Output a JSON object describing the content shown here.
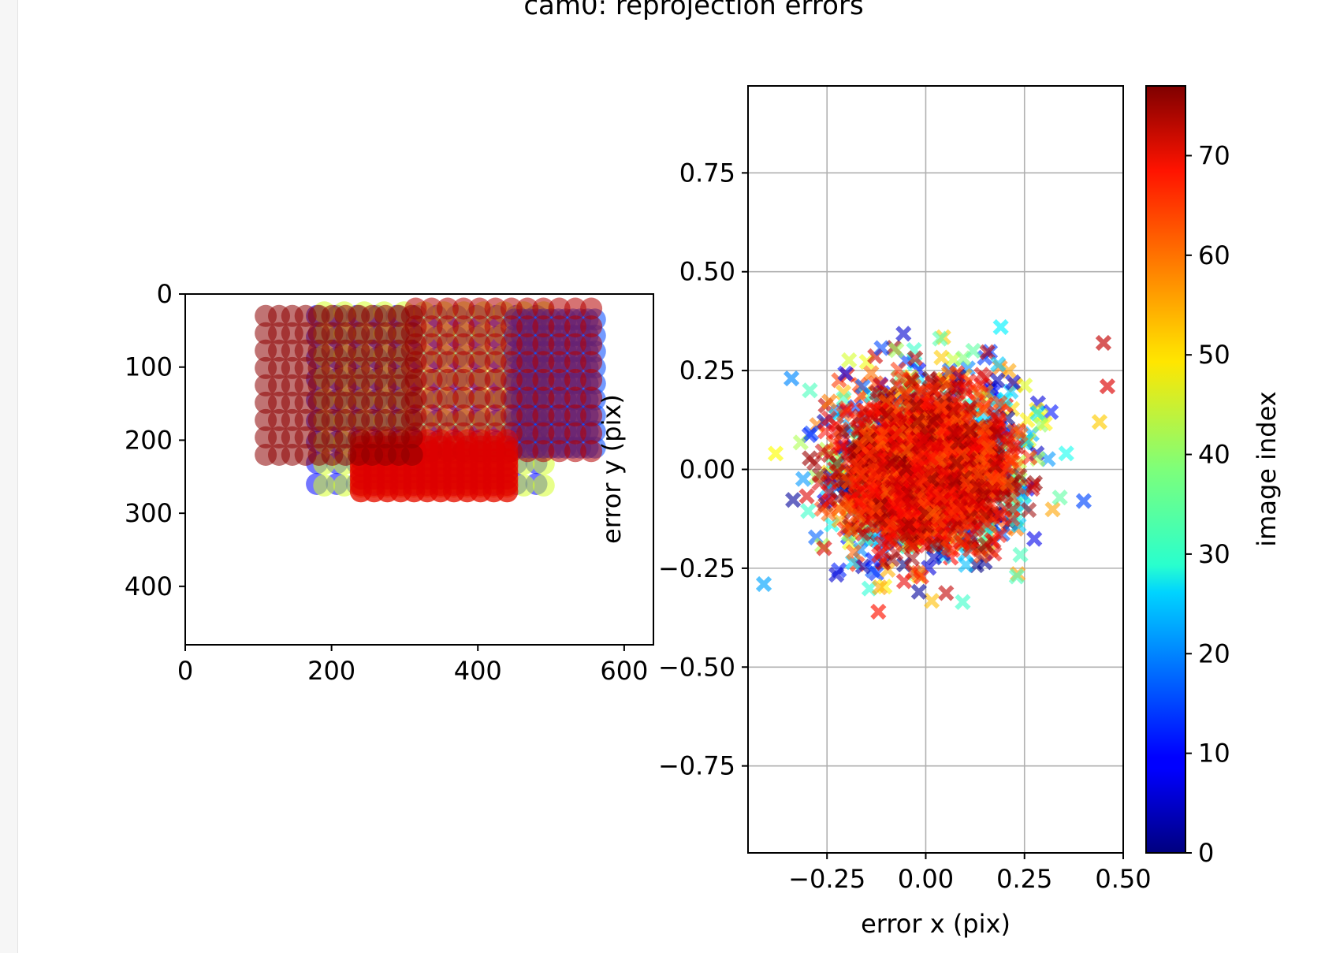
{
  "figure": {
    "title": "cam0: reprojection errors"
  },
  "chart_data": [
    {
      "type": "scatter",
      "name": "image-points",
      "xlim": [
        0,
        640
      ],
      "ylim": [
        480,
        0
      ],
      "xticks": [
        0,
        200,
        400,
        600
      ],
      "yticks": [
        0,
        100,
        200,
        300,
        400
      ],
      "xlabel": "",
      "ylabel": "",
      "marker": "circle",
      "grid": false,
      "color_by": "image index",
      "groups": [
        {
          "image_index": 10,
          "x_range": [
            180,
            480
          ],
          "y_range": [
            30,
            260
          ]
        },
        {
          "image_index": 45,
          "x_range": [
            190,
            490
          ],
          "y_range": [
            25,
            262
          ]
        },
        {
          "image_index": 15,
          "x_range": [
            450,
            560
          ],
          "y_range": [
            35,
            210
          ]
        },
        {
          "image_index": 63,
          "x_range": [
            240,
            440
          ],
          "y_range": [
            220,
            270
          ]
        },
        {
          "image_index": 73,
          "x_range": [
            315,
            555
          ],
          "y_range": [
            20,
            215
          ]
        },
        {
          "image_index": 70,
          "x_range": [
            240,
            440
          ],
          "y_range": [
            200,
            270
          ]
        },
        {
          "image_index": 76,
          "x_range": [
            110,
            310
          ],
          "y_range": [
            30,
            220
          ]
        }
      ]
    },
    {
      "type": "scatter",
      "name": "reprojection-errors",
      "xlim": [
        -0.45,
        0.5
      ],
      "ylim": [
        -0.97,
        0.97
      ],
      "xticks": [
        -0.25,
        0.0,
        0.25,
        0.5
      ],
      "xtick_labels": [
        "−0.25",
        "0.00",
        "0.25",
        "0.50"
      ],
      "yticks": [
        -0.75,
        -0.5,
        -0.25,
        0.0,
        0.25,
        0.5,
        0.75
      ],
      "ytick_labels": [
        "−0.75",
        "−0.50",
        "−0.25",
        "0.00",
        "0.25",
        "0.50",
        "0.75"
      ],
      "xlabel": "error x (pix)",
      "ylabel": "error y (pix)",
      "marker": "x",
      "grid": true,
      "color_by": "image index",
      "distribution": {
        "center": [
          0.0,
          0.0
        ],
        "spread_x": 0.12,
        "spread_y": 0.11,
        "max_radius": 0.36
      },
      "outliers": [
        {
          "x": -0.41,
          "y": -0.29,
          "image_index": 22
        },
        {
          "x": -0.34,
          "y": 0.23,
          "image_index": 20
        },
        {
          "x": 0.45,
          "y": 0.32,
          "image_index": 72
        },
        {
          "x": 0.46,
          "y": 0.21,
          "image_index": 70
        },
        {
          "x": 0.44,
          "y": 0.12,
          "image_index": 52
        },
        {
          "x": -0.12,
          "y": -0.36,
          "image_index": 66
        },
        {
          "x": 0.19,
          "y": 0.36,
          "image_index": 28
        },
        {
          "x": -0.38,
          "y": 0.04,
          "image_index": 48
        },
        {
          "x": 0.4,
          "y": -0.08,
          "image_index": 15
        }
      ]
    },
    {
      "type": "colorbar",
      "name": "image-index-colorbar",
      "label": "image index",
      "colormap": "jet",
      "range": [
        0,
        77
      ],
      "ticks": [
        0,
        10,
        20,
        30,
        40,
        50,
        60,
        70
      ]
    }
  ]
}
